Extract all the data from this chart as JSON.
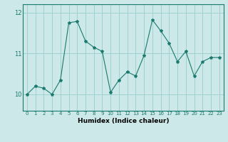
{
  "x": [
    0,
    1,
    2,
    3,
    4,
    5,
    6,
    7,
    8,
    9,
    10,
    11,
    12,
    13,
    14,
    15,
    16,
    17,
    18,
    19,
    20,
    21,
    22,
    23
  ],
  "y": [
    10.0,
    10.2,
    10.15,
    10.0,
    10.35,
    11.75,
    11.78,
    11.3,
    11.15,
    11.05,
    10.05,
    10.35,
    10.55,
    10.45,
    10.95,
    11.82,
    11.55,
    11.25,
    10.8,
    11.05,
    10.45,
    10.8,
    10.9,
    10.9
  ],
  "line_color": "#1a7a6e",
  "marker": "*",
  "marker_size": 3,
  "bg_color": "#cce8e8",
  "grid_color": "#99cccc",
  "xlabel": "Humidex (Indice chaleur)",
  "xlim": [
    -0.5,
    23.5
  ],
  "ylim": [
    9.6,
    12.2
  ],
  "yticks": [
    10,
    11,
    12
  ],
  "xticks": [
    0,
    1,
    2,
    3,
    4,
    5,
    6,
    7,
    8,
    9,
    10,
    11,
    12,
    13,
    14,
    15,
    16,
    17,
    18,
    19,
    20,
    21,
    22,
    23
  ],
  "xlabel_fontsize": 6.5,
  "xtick_fontsize": 5,
  "ytick_fontsize": 6
}
